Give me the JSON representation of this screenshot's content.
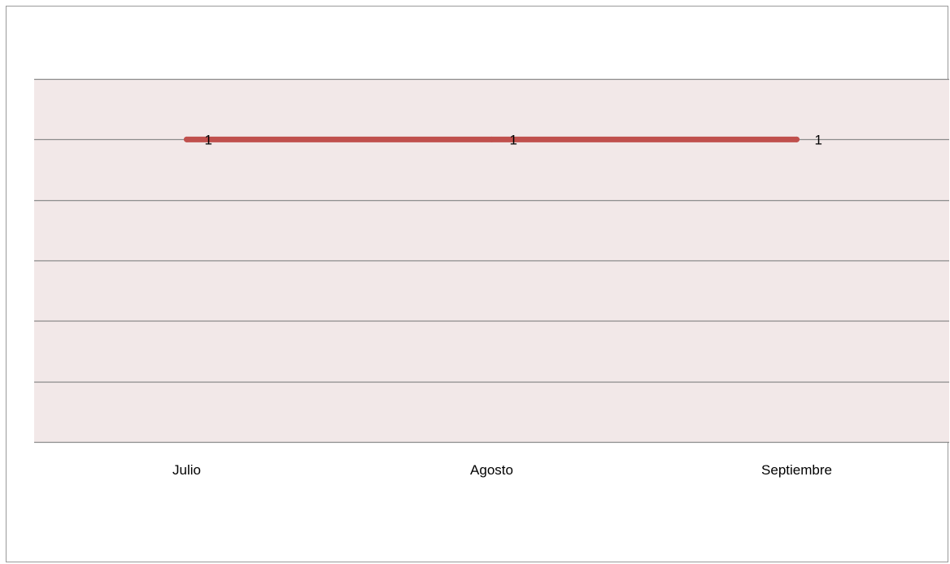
{
  "chart_data": {
    "type": "line",
    "categories": [
      "Julio",
      "Agosto",
      "Septiembre"
    ],
    "series": [
      {
        "values": [
          1,
          1,
          1
        ],
        "color": "#c0504d"
      }
    ],
    "ylim": [
      0,
      1.2
    ],
    "y_gridline_step": 0.2,
    "y_tick_labels_shown": false,
    "data_labels": [
      "1",
      "1",
      "1"
    ],
    "grid": true,
    "legend": "none",
    "plot_background": "#f2e8e8",
    "gridline_color": "#8c8c8c"
  }
}
